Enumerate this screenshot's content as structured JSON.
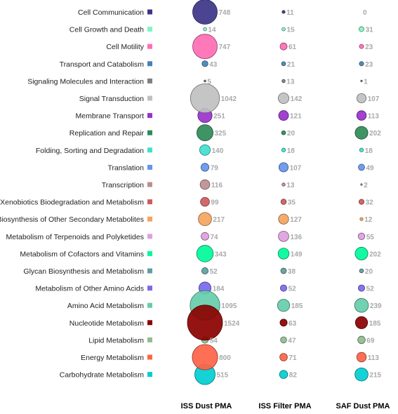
{
  "chart_data": {
    "type": "bubble",
    "columns": [
      "ISS Dust PMA",
      "ISS Filter PMA",
      "SAF Dust PMA"
    ],
    "categories": [
      "Cell Communication",
      "Cell Growth and Death",
      "Cell Motility",
      "Transport and Catabolism",
      "Signaling Molecules and Interaction",
      "Signal Transduction",
      "Membrane Transport",
      "Replication and Repair",
      "Folding, Sorting and Degradation",
      "Translation",
      "Transcription",
      "Xenobiotics Biodegradation and Metabolism",
      "Biosynthesis of Other Secondary Metabolites",
      "Metabolism of Terpenoids and Polyketides",
      "Metabolism of Cofactors and Vitamins",
      "Glycan Biosynthesis and Metabolism",
      "Metabolism of Other Amino Acids",
      "Amino Acid Metabolism",
      "Nucleotide Metabolism",
      "Lipid Metabolism",
      "Energy Metabolism",
      "Carbohydrate Metabolism"
    ],
    "colors": [
      "#3b3488",
      "#80f5c2",
      "#ff6eb4",
      "#4682b4",
      "#7f7f7f",
      "#c0c0c0",
      "#9932cc",
      "#2e8b57",
      "#40e0d0",
      "#6495ed",
      "#bc8f8f",
      "#cd5c5c",
      "#f4a460",
      "#dda0dd",
      "#00fa9a",
      "#5f9ea0",
      "#7b68ee",
      "#66cdaa",
      "#8b0000",
      "#8fbc8f",
      "#ff6347",
      "#00ced1"
    ],
    "series": [
      {
        "name": "ISS Dust PMA",
        "values": [
          748,
          14,
          747,
          43,
          5,
          1042,
          251,
          325,
          140,
          79,
          116,
          99,
          217,
          74,
          343,
          52,
          184,
          1095,
          1524,
          54,
          800,
          515
        ]
      },
      {
        "name": "ISS Filter PMA",
        "values": [
          11,
          15,
          61,
          21,
          13,
          142,
          121,
          20,
          18,
          107,
          13,
          35,
          127,
          136,
          149,
          38,
          52,
          185,
          63,
          47,
          71,
          82
        ]
      },
      {
        "name": "SAF Dust PMA",
        "values": [
          0,
          31,
          23,
          23,
          1,
          107,
          113,
          202,
          18,
          49,
          2,
          32,
          12,
          55,
          202,
          20,
          52,
          239,
          185,
          69,
          113,
          215
        ]
      }
    ]
  }
}
